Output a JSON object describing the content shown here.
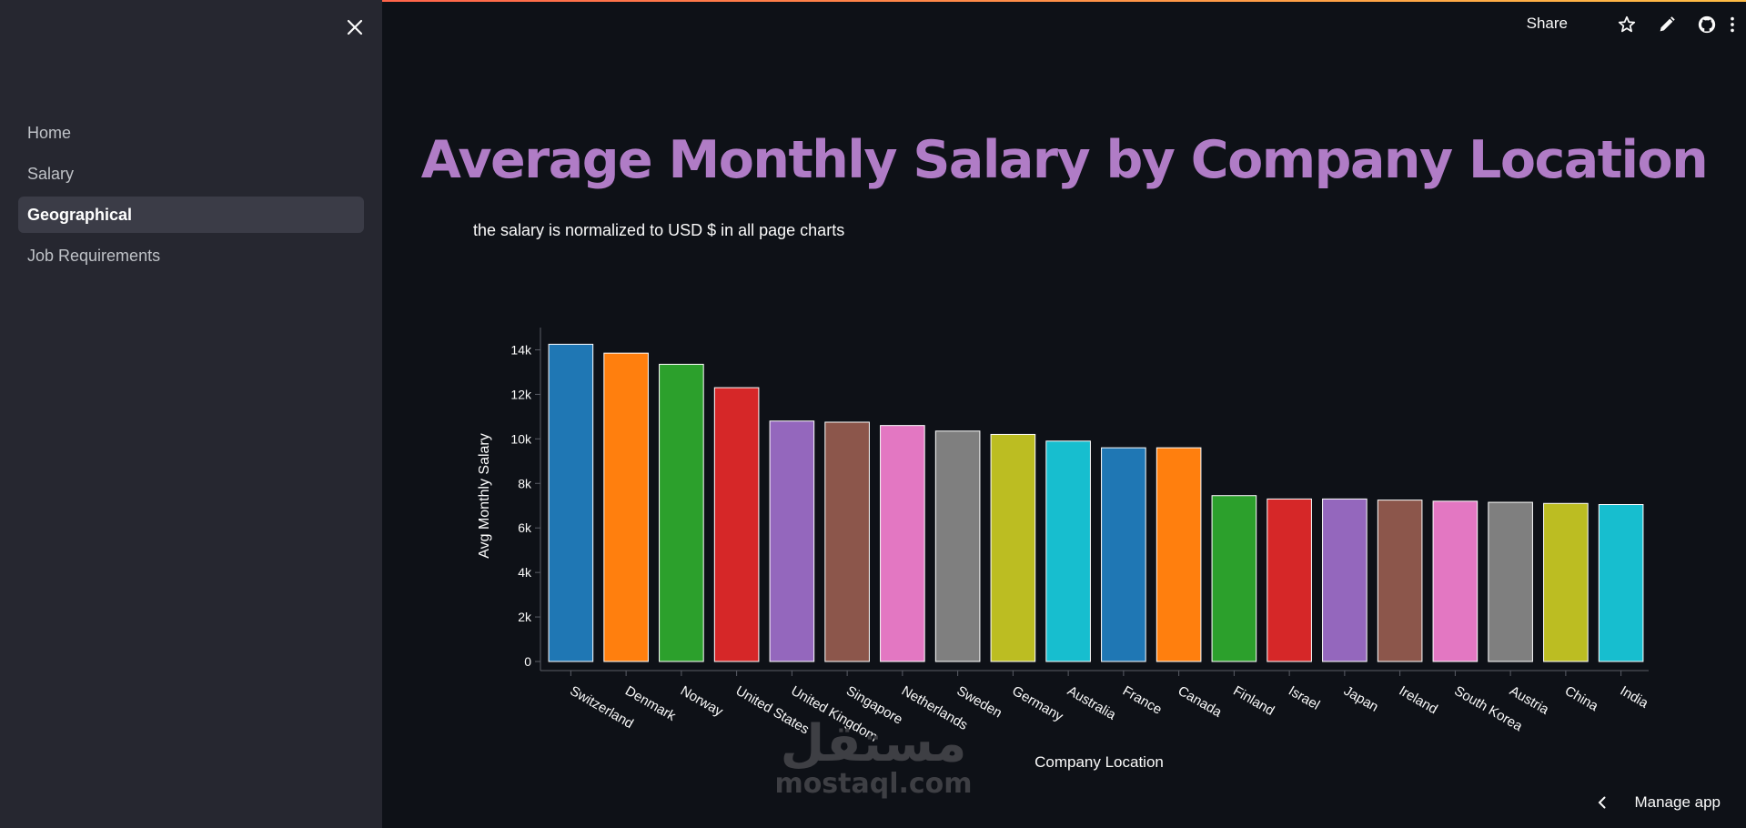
{
  "sidebar": {
    "items": [
      {
        "label": "Home",
        "active": false
      },
      {
        "label": "Salary",
        "active": false
      },
      {
        "label": "Geographical",
        "active": true
      },
      {
        "label": "Job Requirements",
        "active": false
      }
    ],
    "close_icon": "close-icon"
  },
  "toolbar": {
    "share_label": "Share",
    "icons": [
      "star-icon",
      "edit-pencil-icon",
      "github-icon",
      "more-vertical-icon"
    ]
  },
  "main": {
    "title": "Average Monthly Salary by Company Location",
    "subtitle": "the salary is normalized to USD $ in all page charts"
  },
  "watermark": {
    "arabic": "مستقل",
    "latin": "mostaql.com"
  },
  "footer": {
    "manage_label": "Manage app"
  },
  "colors": {
    "background": "#0e1117",
    "sidebar": "#262730",
    "title": "#b07cc6",
    "palette": [
      "#1f77b4",
      "#ff7f0e",
      "#2ca02c",
      "#d62728",
      "#9467bd",
      "#8c564b",
      "#e377c2",
      "#7f7f7f",
      "#bcbd22",
      "#17becf"
    ]
  },
  "chart_data": {
    "type": "bar",
    "xlabel": "Company Location",
    "ylabel": "Avg Monthly Salary",
    "ylim": [
      0,
      15000
    ],
    "yticks": [
      0,
      2000,
      4000,
      6000,
      8000,
      10000,
      12000,
      14000
    ],
    "ytick_labels": [
      "0",
      "2k",
      "4k",
      "6k",
      "8k",
      "10k",
      "12k",
      "14k"
    ],
    "categories": [
      "Switzerland",
      "Denmark",
      "Norway",
      "United States",
      "United Kingdom",
      "Singapore",
      "Netherlands",
      "Sweden",
      "Germany",
      "Australia",
      "France",
      "Canada",
      "Finland",
      "Israel",
      "Japan",
      "Ireland",
      "South Korea",
      "Austria",
      "China",
      "India"
    ],
    "values": [
      14250,
      13850,
      13350,
      12300,
      10800,
      10750,
      10600,
      10350,
      10200,
      9900,
      9600,
      9600,
      7450,
      7300,
      7300,
      7250,
      7200,
      7150,
      7100,
      7050
    ],
    "grid": false,
    "legend": "none"
  }
}
